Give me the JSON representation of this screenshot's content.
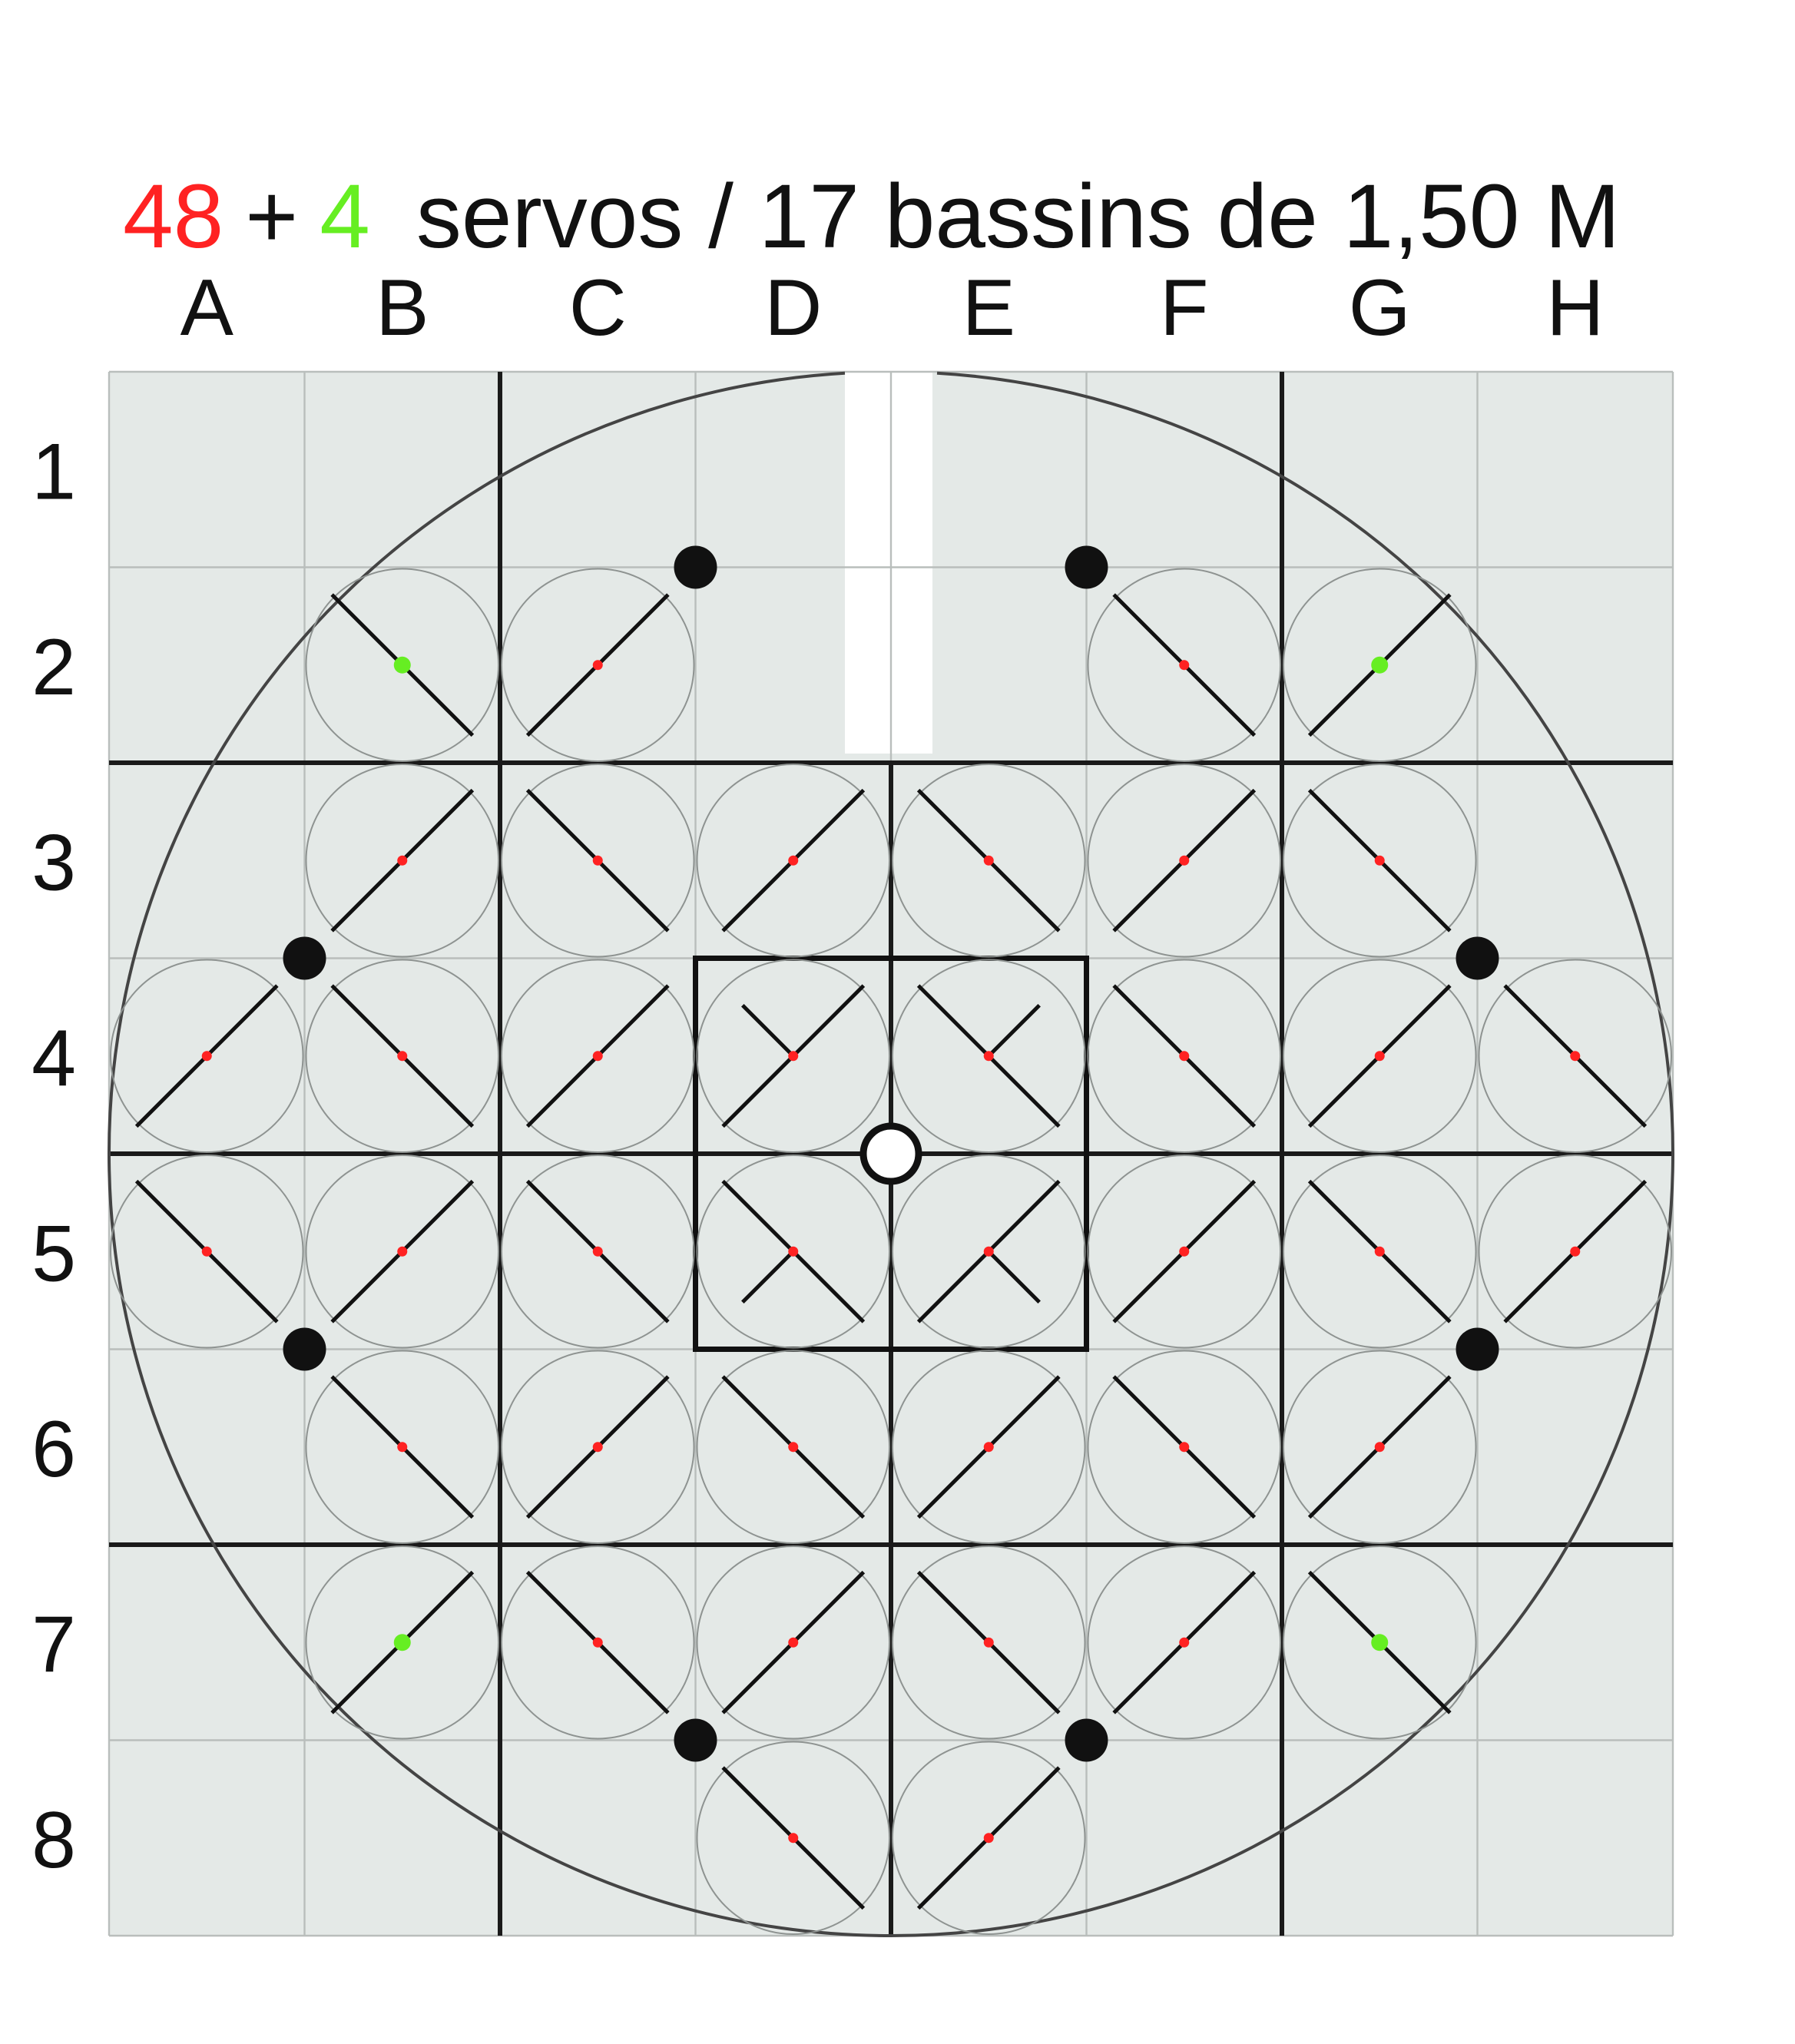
{
  "title": {
    "count_red": "48",
    "plus": "+",
    "count_green": "4",
    "rest": "servos / 17 bassins de 1,50 M"
  },
  "columns": [
    "A",
    "B",
    "C",
    "D",
    "E",
    "F",
    "G",
    "H"
  ],
  "rows": [
    "1",
    "2",
    "3",
    "4",
    "5",
    "6",
    "7",
    "8"
  ],
  "colors": {
    "background": "#e4e9e7",
    "red_servo": "#ff2222",
    "green_servo": "#66ee22",
    "ink": "#111111"
  },
  "grid": {
    "columns": 8,
    "rows": 8,
    "basin_block_size": 2,
    "central_basin": {
      "col_start": 3,
      "row_start": 3,
      "cols": 2,
      "rows": 2
    }
  },
  "servos": [
    {
      "cell": "B2",
      "color": "green",
      "diag": "down"
    },
    {
      "cell": "C2",
      "color": "red",
      "diag": "up"
    },
    {
      "cell": "F2",
      "color": "red",
      "diag": "down"
    },
    {
      "cell": "G2",
      "color": "green",
      "diag": "up"
    },
    {
      "cell": "B3",
      "color": "red",
      "diag": "up"
    },
    {
      "cell": "C3",
      "color": "red",
      "diag": "down"
    },
    {
      "cell": "D3",
      "color": "red",
      "diag": "up"
    },
    {
      "cell": "E3",
      "color": "red",
      "diag": "down"
    },
    {
      "cell": "F3",
      "color": "red",
      "diag": "up"
    },
    {
      "cell": "G3",
      "color": "red",
      "diag": "down"
    },
    {
      "cell": "A4",
      "color": "red",
      "diag": "up"
    },
    {
      "cell": "B4",
      "color": "red",
      "diag": "down"
    },
    {
      "cell": "C4",
      "color": "red",
      "diag": "up"
    },
    {
      "cell": "D4",
      "color": "red",
      "diag": "up",
      "extra": "tl"
    },
    {
      "cell": "E4",
      "color": "red",
      "diag": "down",
      "extra": "tr"
    },
    {
      "cell": "F4",
      "color": "red",
      "diag": "down"
    },
    {
      "cell": "G4",
      "color": "red",
      "diag": "up"
    },
    {
      "cell": "H4",
      "color": "red",
      "diag": "down"
    },
    {
      "cell": "A5",
      "color": "red",
      "diag": "down"
    },
    {
      "cell": "B5",
      "color": "red",
      "diag": "up"
    },
    {
      "cell": "C5",
      "color": "red",
      "diag": "down"
    },
    {
      "cell": "D5",
      "color": "red",
      "diag": "down",
      "extra": "bl"
    },
    {
      "cell": "E5",
      "color": "red",
      "diag": "up",
      "extra": "br"
    },
    {
      "cell": "F5",
      "color": "red",
      "diag": "up"
    },
    {
      "cell": "G5",
      "color": "red",
      "diag": "down"
    },
    {
      "cell": "H5",
      "color": "red",
      "diag": "up"
    },
    {
      "cell": "B6",
      "color": "red",
      "diag": "down"
    },
    {
      "cell": "C6",
      "color": "red",
      "diag": "up"
    },
    {
      "cell": "D6",
      "color": "red",
      "diag": "down"
    },
    {
      "cell": "E6",
      "color": "red",
      "diag": "up"
    },
    {
      "cell": "F6",
      "color": "red",
      "diag": "down"
    },
    {
      "cell": "G6",
      "color": "red",
      "diag": "up"
    },
    {
      "cell": "B7",
      "color": "green",
      "diag": "up"
    },
    {
      "cell": "C7",
      "color": "red",
      "diag": "down"
    },
    {
      "cell": "D7",
      "color": "red",
      "diag": "up"
    },
    {
      "cell": "E7",
      "color": "red",
      "diag": "down"
    },
    {
      "cell": "F7",
      "color": "red",
      "diag": "up"
    },
    {
      "cell": "G7",
      "color": "green",
      "diag": "down"
    },
    {
      "cell": "D8",
      "color": "red",
      "diag": "down"
    },
    {
      "cell": "E8",
      "color": "red",
      "diag": "up"
    }
  ],
  "markers": [
    {
      "col": 3.0,
      "row": 1.0
    },
    {
      "col": 5.0,
      "row": 1.0
    },
    {
      "col": 1.0,
      "row": 3.0
    },
    {
      "col": 7.0,
      "row": 3.0
    },
    {
      "col": 1.0,
      "row": 5.0
    },
    {
      "col": 7.0,
      "row": 5.0
    },
    {
      "col": 3.0,
      "row": 7.0
    },
    {
      "col": 5.0,
      "row": 7.0
    }
  ],
  "center_marker": {
    "col": 4.0,
    "row": 4.0
  }
}
